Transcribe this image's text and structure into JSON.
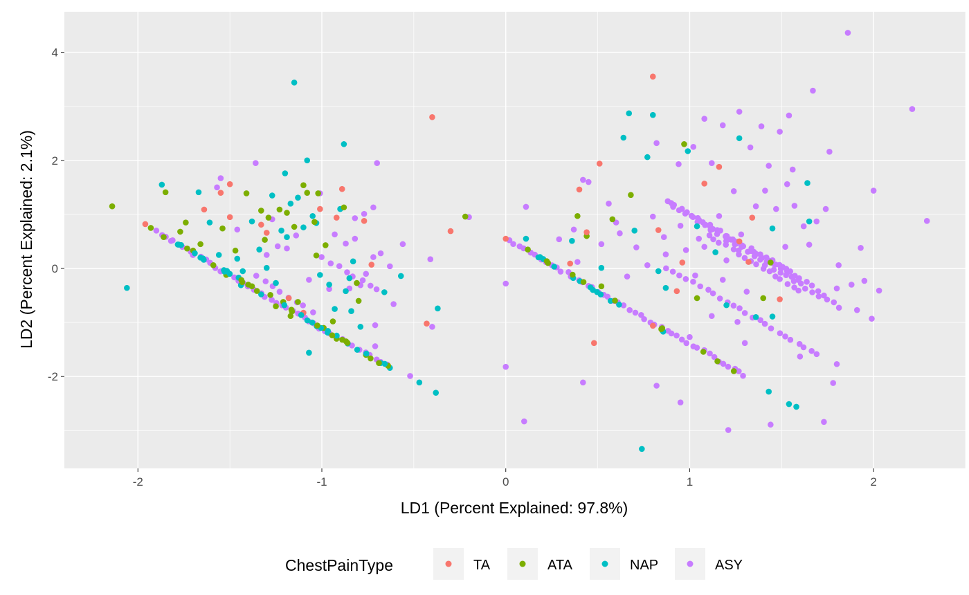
{
  "chart_data": {
    "type": "scatter",
    "xlabel": "LD1 (Percent Explained: 97.8%)",
    "ylabel": "LD2 (Percent Explained: 2.1%)",
    "xlim": [
      -2.4,
      2.5
    ],
    "ylim": [
      -3.7,
      4.75
    ],
    "x_ticks": [
      -2,
      -1,
      0,
      1,
      2
    ],
    "y_ticks": [
      -2,
      0,
      2,
      4
    ],
    "grid": true,
    "legend_title": "ChestPainType",
    "legend_position": "bottom",
    "series": [
      {
        "name": "TA",
        "color": "#F8766D",
        "points": [
          [
            -1.96,
            0.82
          ],
          [
            -1.64,
            1.09
          ],
          [
            -1.55,
            1.4
          ],
          [
            -1.5,
            1.56
          ],
          [
            -1.5,
            0.95
          ],
          [
            -1.33,
            0.81
          ],
          [
            -1.3,
            0.66
          ],
          [
            -1.18,
            -0.55
          ],
          [
            -1.1,
            -0.82
          ],
          [
            -1.01,
            1.1
          ],
          [
            -0.92,
            0.94
          ],
          [
            -0.89,
            1.47
          ],
          [
            -0.77,
            0.88
          ],
          [
            -0.73,
            0.07
          ],
          [
            -0.43,
            -1.02
          ],
          [
            -0.4,
            2.8
          ],
          [
            -0.3,
            0.69
          ],
          [
            0.0,
            0.55
          ],
          [
            0.35,
            0.09
          ],
          [
            0.4,
            1.46
          ],
          [
            0.44,
            0.67
          ],
          [
            0.48,
            -1.38
          ],
          [
            0.51,
            1.94
          ],
          [
            0.8,
            -1.06
          ],
          [
            0.8,
            3.55
          ],
          [
            0.83,
            0.71
          ],
          [
            0.93,
            -0.42
          ],
          [
            0.96,
            0.11
          ],
          [
            1.08,
            1.57
          ],
          [
            1.16,
            1.88
          ],
          [
            1.32,
            0.12
          ],
          [
            1.34,
            0.94
          ],
          [
            1.49,
            -0.57
          ],
          [
            1.27,
            0.5
          ]
        ]
      },
      {
        "name": "ATA",
        "color": "#7CAE00",
        "points": [
          [
            -2.14,
            1.15
          ],
          [
            -1.93,
            0.75
          ],
          [
            -1.86,
            0.58
          ],
          [
            -1.85,
            1.41
          ],
          [
            -1.77,
            0.68
          ],
          [
            -1.74,
            0.85
          ],
          [
            -1.7,
            0.33
          ],
          [
            -1.66,
            0.45
          ],
          [
            -1.59,
            0.06
          ],
          [
            -1.54,
            0.74
          ],
          [
            -1.47,
            0.33
          ],
          [
            -1.41,
            1.39
          ],
          [
            -1.38,
            -0.33
          ],
          [
            -1.33,
            1.07
          ],
          [
            -1.31,
            0.53
          ],
          [
            -1.28,
            -0.49
          ],
          [
            -1.23,
            1.09
          ],
          [
            -1.21,
            -0.62
          ],
          [
            -1.19,
            1.03
          ],
          [
            -1.17,
            -0.88
          ],
          [
            -1.15,
            0.77
          ],
          [
            -1.13,
            -0.62
          ],
          [
            -1.1,
            1.54
          ],
          [
            -1.08,
            1.4
          ],
          [
            -1.04,
            0.86
          ],
          [
            -1.03,
            0.24
          ],
          [
            -1.02,
            1.39
          ],
          [
            -0.99,
            -1.1
          ],
          [
            -0.94,
            -0.98
          ],
          [
            -0.92,
            -1.3
          ],
          [
            -0.88,
            1.13
          ],
          [
            -0.81,
            -0.27
          ],
          [
            -0.8,
            -0.6
          ],
          [
            -0.76,
            -1.6
          ],
          [
            -0.64,
            -1.8
          ],
          [
            -0.22,
            0.96
          ],
          [
            0.12,
            0.35
          ],
          [
            0.23,
            0.1
          ],
          [
            0.39,
            0.97
          ],
          [
            0.44,
            0.6
          ],
          [
            0.52,
            -0.33
          ],
          [
            0.58,
            0.91
          ],
          [
            0.68,
            1.36
          ],
          [
            0.85,
            -1.14
          ],
          [
            0.97,
            2.3
          ],
          [
            1.04,
            -0.55
          ],
          [
            1.24,
            -1.9
          ],
          [
            1.4,
            -0.55
          ],
          [
            1.44,
            0.11
          ],
          [
            -1.29,
            0.94
          ],
          [
            -0.98,
            0.43
          ],
          [
            -1.52,
            -0.12
          ],
          [
            -1.25,
            -0.7
          ]
        ]
      },
      {
        "name": "NAP",
        "color": "#00BFC4",
        "points": [
          [
            -2.06,
            -0.36
          ],
          [
            -1.87,
            1.55
          ],
          [
            -1.67,
            1.41
          ],
          [
            -1.66,
            0.2
          ],
          [
            -1.61,
            0.85
          ],
          [
            -1.56,
            0.25
          ],
          [
            -1.46,
            0.18
          ],
          [
            -1.44,
            -0.31
          ],
          [
            -1.38,
            0.87
          ],
          [
            -1.34,
            0.35
          ],
          [
            -1.33,
            -0.48
          ],
          [
            -1.3,
            0.01
          ],
          [
            -1.27,
            1.35
          ],
          [
            -1.25,
            -0.27
          ],
          [
            -1.22,
            0.7
          ],
          [
            -1.2,
            1.76
          ],
          [
            -1.19,
            0.58
          ],
          [
            -1.17,
            1.2
          ],
          [
            -1.15,
            3.44
          ],
          [
            -1.13,
            1.31
          ],
          [
            -1.1,
            0.76
          ],
          [
            -1.08,
            2.0
          ],
          [
            -1.05,
            0.97
          ],
          [
            -1.03,
            0.84
          ],
          [
            -1.01,
            -0.12
          ],
          [
            -0.96,
            -0.3
          ],
          [
            -0.93,
            -0.75
          ],
          [
            -0.9,
            1.1
          ],
          [
            -0.88,
            2.3
          ],
          [
            -0.87,
            -0.42
          ],
          [
            -0.85,
            -0.18
          ],
          [
            -0.84,
            -0.79
          ],
          [
            -0.83,
            0.13
          ],
          [
            -0.79,
            -1.08
          ],
          [
            -0.66,
            -0.44
          ],
          [
            -0.63,
            -1.84
          ],
          [
            -0.57,
            -0.14
          ],
          [
            -0.47,
            -2.11
          ],
          [
            -0.38,
            -2.3
          ],
          [
            -0.37,
            -0.74
          ],
          [
            -1.07,
            -1.56
          ],
          [
            -1.43,
            -0.05
          ],
          [
            0.11,
            0.55
          ],
          [
            0.36,
            0.51
          ],
          [
            0.52,
            0.01
          ],
          [
            0.57,
            -0.6
          ],
          [
            0.64,
            2.42
          ],
          [
            0.67,
            2.87
          ],
          [
            0.7,
            0.7
          ],
          [
            0.74,
            -3.34
          ],
          [
            0.8,
            2.84
          ],
          [
            0.77,
            2.06
          ],
          [
            0.83,
            -0.05
          ],
          [
            0.87,
            -0.36
          ],
          [
            0.99,
            2.17
          ],
          [
            1.04,
            0.78
          ],
          [
            1.14,
            0.3
          ],
          [
            1.2,
            -0.68
          ],
          [
            1.27,
            2.41
          ],
          [
            1.36,
            -0.9
          ],
          [
            1.43,
            -2.28
          ],
          [
            1.45,
            0.74
          ],
          [
            1.54,
            -2.51
          ],
          [
            1.64,
            1.58
          ],
          [
            1.65,
            0.87
          ],
          [
            1.58,
            -2.56
          ],
          [
            1.45,
            -0.89
          ]
        ]
      },
      {
        "name": "ASY",
        "color": "#C77CFF",
        "points": [
          [
            -1.9,
            0.7
          ],
          [
            -1.82,
            0.51
          ],
          [
            -1.55,
            1.67
          ],
          [
            -1.57,
            1.5
          ],
          [
            -1.46,
            0.72
          ],
          [
            -1.36,
            1.95
          ],
          [
            -1.3,
            0.25
          ],
          [
            -1.27,
            0.91
          ],
          [
            -1.24,
            0.41
          ],
          [
            -1.19,
            0.37
          ],
          [
            -1.14,
            0.61
          ],
          [
            -1.07,
            -0.21
          ],
          [
            -1.01,
            1.39
          ],
          [
            -0.96,
            -0.38
          ],
          [
            -0.93,
            0.63
          ],
          [
            -0.87,
            0.46
          ],
          [
            -0.85,
            -0.37
          ],
          [
            -0.82,
            0.93
          ],
          [
            -0.79,
            -0.31
          ],
          [
            -0.77,
            1.01
          ],
          [
            -0.72,
            1.13
          ],
          [
            -0.7,
            1.95
          ],
          [
            -0.68,
            0.28
          ],
          [
            -0.63,
            0.04
          ],
          [
            -0.61,
            -0.66
          ],
          [
            -0.56,
            0.45
          ],
          [
            -0.52,
            -1.99
          ],
          [
            -0.41,
            0.17
          ],
          [
            -0.4,
            -1.08
          ],
          [
            -0.2,
            0.95
          ],
          [
            -0.72,
            0.21
          ],
          [
            -0.76,
            -0.1
          ],
          [
            -0.71,
            -1.05
          ],
          [
            -0.82,
            0.55
          ],
          [
            -0.71,
            -1.44
          ],
          [
            0.0,
            -0.28
          ],
          [
            0.0,
            -1.82
          ],
          [
            0.11,
            1.14
          ],
          [
            0.1,
            -2.83
          ],
          [
            0.29,
            0.54
          ],
          [
            0.37,
            0.72
          ],
          [
            0.39,
            0.12
          ],
          [
            0.42,
            1.64
          ],
          [
            0.42,
            -2.11
          ],
          [
            0.45,
            1.6
          ],
          [
            0.52,
            0.45
          ],
          [
            0.56,
            1.2
          ],
          [
            0.6,
            0.85
          ],
          [
            0.62,
            0.65
          ],
          [
            0.71,
            0.39
          ],
          [
            0.77,
            0.06
          ],
          [
            0.8,
            0.96
          ],
          [
            0.82,
            2.32
          ],
          [
            0.82,
            -2.17
          ],
          [
            0.86,
            0.58
          ],
          [
            0.9,
            1.21
          ],
          [
            0.94,
            1.93
          ],
          [
            0.95,
            -2.48
          ],
          [
            0.98,
            0.34
          ],
          [
            1.02,
            2.25
          ],
          [
            1.05,
            0.55
          ],
          [
            1.08,
            2.77
          ],
          [
            1.12,
            1.95
          ],
          [
            1.15,
            0.71
          ],
          [
            1.18,
            2.65
          ],
          [
            1.21,
            -2.99
          ],
          [
            1.24,
            1.43
          ],
          [
            1.27,
            2.9
          ],
          [
            1.3,
            -1.38
          ],
          [
            1.33,
            2.24
          ],
          [
            1.36,
            1.15
          ],
          [
            1.39,
            2.63
          ],
          [
            1.41,
            1.44
          ],
          [
            1.44,
            -2.89
          ],
          [
            1.47,
            1.1
          ],
          [
            1.49,
            2.53
          ],
          [
            1.52,
            0.4
          ],
          [
            1.54,
            2.83
          ],
          [
            1.57,
            1.16
          ],
          [
            1.6,
            -1.63
          ],
          [
            1.62,
            0.78
          ],
          [
            1.67,
            3.29
          ],
          [
            1.69,
            0.87
          ],
          [
            1.73,
            -2.84
          ],
          [
            1.76,
            2.16
          ],
          [
            1.8,
            -1.77
          ],
          [
            1.81,
            0.06
          ],
          [
            1.86,
            4.36
          ],
          [
            1.93,
            0.38
          ],
          [
            1.95,
            -0.23
          ],
          [
            1.99,
            -0.93
          ],
          [
            2.0,
            1.44
          ],
          [
            2.03,
            -0.41
          ],
          [
            2.21,
            2.95
          ],
          [
            2.29,
            0.88
          ],
          [
            1.16,
            0.97
          ],
          [
            1.2,
            0.15
          ],
          [
            1.28,
            0.63
          ],
          [
            1.31,
            -0.43
          ],
          [
            1.36,
            0.27
          ],
          [
            1.12,
            -0.88
          ],
          [
            1.08,
            0.4
          ],
          [
            1.03,
            -0.13
          ],
          [
            0.91,
            1.14
          ],
          [
            0.95,
            0.79
          ],
          [
            0.66,
            -0.15
          ],
          [
            0.87,
            0.26
          ],
          [
            1.0,
            -1.27
          ],
          [
            1.18,
            -0.21
          ],
          [
            1.26,
            -0.99
          ],
          [
            1.43,
            1.9
          ],
          [
            1.53,
            1.56
          ],
          [
            1.56,
            1.83
          ],
          [
            1.65,
            0.44
          ],
          [
            1.74,
            1.1
          ],
          [
            1.8,
            -0.37
          ],
          [
            1.88,
            -0.3
          ],
          [
            1.91,
            -0.77
          ],
          [
            1.78,
            -2.12
          ],
          [
            1.73,
            -0.5
          ]
        ],
        "lines": [
          {
            "from": [
              0.02,
              0.52
            ],
            "to": [
              1.3,
              -1.98
            ],
            "n": 46
          },
          {
            "from": [
              -1.87,
              0.62
            ],
            "to": [
              -0.65,
              -1.8
            ],
            "n": 42
          },
          {
            "from": [
              -0.88,
              1.09
            ],
            "to": [
              -0.1,
              -0.4
            ],
            "n": 0
          },
          {
            "from": [
              0.88,
              1.22
            ],
            "to": [
              1.55,
              -0.05
            ],
            "n": 22
          },
          {
            "from": [
              0.95,
              1.1
            ],
            "to": [
              1.6,
              -0.2
            ],
            "n": 20
          },
          {
            "from": [
              1.05,
              0.85
            ],
            "to": [
              1.7,
              -0.4
            ],
            "n": 20
          },
          {
            "from": [
              1.1,
              0.62
            ],
            "to": [
              1.6,
              -0.4
            ],
            "n": 16
          },
          {
            "from": [
              1.2,
              0.5
            ],
            "to": [
              1.82,
              -0.72
            ],
            "n": 18
          },
          {
            "from": [
              0.88,
              0.02
            ],
            "to": [
              1.7,
              -1.6
            ],
            "n": 24
          },
          {
            "from": [
              -1.0,
              0.2
            ],
            "to": [
              -0.7,
              -0.4
            ],
            "n": 8
          },
          {
            "from": [
              -1.35,
              -0.15
            ],
            "to": [
              -1.05,
              -0.8
            ],
            "n": 8
          }
        ]
      }
    ]
  }
}
